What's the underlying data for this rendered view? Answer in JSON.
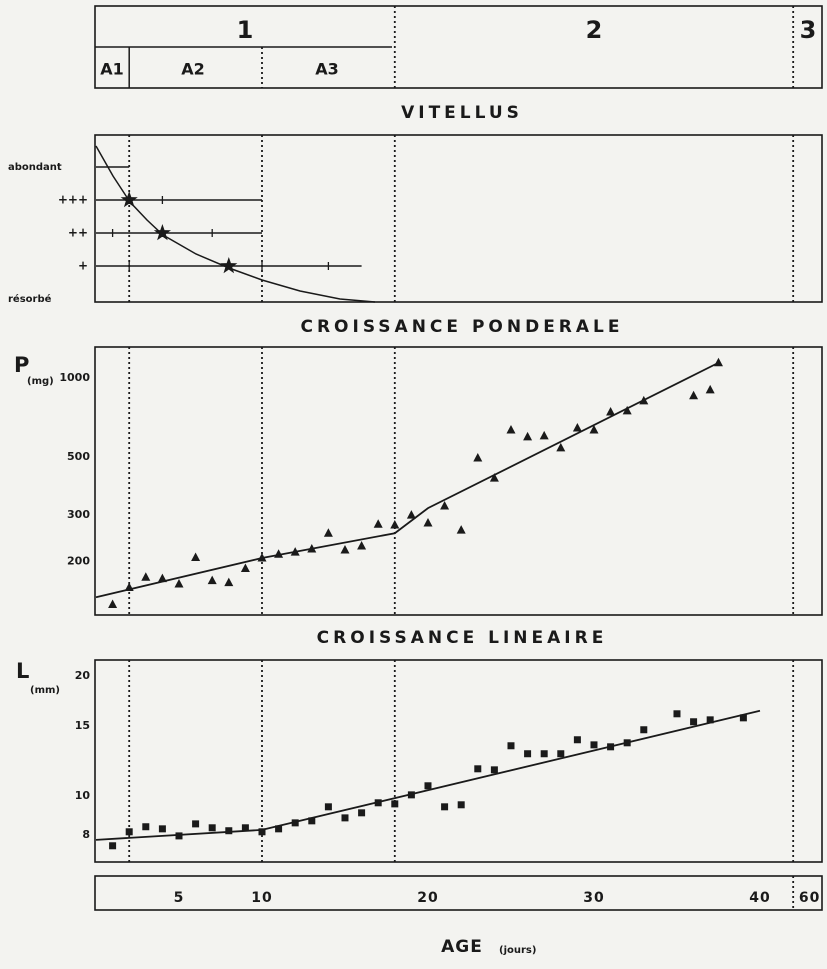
{
  "phases": {
    "labels": [
      "1",
      "2",
      "3"
    ],
    "subphases": [
      "A1",
      "A2",
      "A3"
    ]
  },
  "boundaries": [
    2,
    10,
    18,
    42
  ],
  "vitellus": {
    "title": "VITELLUS",
    "levels": [
      "abondant",
      "+++",
      "++",
      "+",
      "résorbé"
    ],
    "bars": [
      {
        "level": 0,
        "from": 0,
        "to": 2,
        "ticks": []
      },
      {
        "level": 1,
        "from": 0,
        "to": 10,
        "ticks": [
          2,
          4
        ]
      },
      {
        "level": 2,
        "from": 0,
        "to": 10,
        "ticks": [
          1,
          4,
          7
        ]
      },
      {
        "level": 3,
        "from": 0,
        "to": 16,
        "ticks": [
          2,
          10,
          14
        ]
      }
    ],
    "stars": {
      "x": [
        2,
        4,
        8
      ],
      "levels": [
        1,
        2,
        3
      ]
    }
  },
  "chart_data": [
    {
      "type": "scatter",
      "title": "CROISSANCE PONDERALE",
      "y_label": "P",
      "y_label_unit": "(mg)",
      "ylog": true,
      "ylim": [
        125,
        1310
      ],
      "yticks": [
        200,
        300,
        500,
        1000
      ],
      "xlim": [
        0,
        43.7
      ],
      "series": [
        {
          "marker": "triangle",
          "color": "#1a1a1a",
          "x": [
            1,
            2,
            3,
            4,
            5,
            6,
            7,
            8,
            9,
            10,
            11,
            12,
            13,
            14,
            15,
            16,
            17,
            18,
            19,
            20,
            21,
            22,
            23,
            24,
            25,
            26,
            27,
            28,
            29,
            30,
            31,
            32,
            33,
            36,
            37,
            37.5
          ],
          "values": [
            137,
            159,
            174,
            172,
            164,
            207,
            169,
            166,
            188,
            206,
            213,
            217,
            223,
            256,
            221,
            229,
            277,
            275,
            300,
            280,
            325,
            263,
            495,
            415,
            633,
            596,
            601,
            541,
            644,
            633,
            741,
            748,
            817,
            854,
            900,
            1141
          ]
        },
        {
          "marker": "line",
          "color": "#1a1a1a",
          "x": [
            0,
            10,
            18,
            20,
            37.5
          ],
          "values": [
            146,
            206,
            256,
            319,
            1141
          ]
        }
      ]
    },
    {
      "type": "scatter",
      "title": "CROISSANCE LINEAIRE",
      "y_label": "L",
      "y_label_unit": "(mm)",
      "ylog": true,
      "ylim": [
        6.85,
        21.9
      ],
      "yticks": [
        8,
        10,
        15,
        20
      ],
      "xlim": [
        0,
        43.7
      ],
      "series": [
        {
          "marker": "square",
          "color": "#1a1a1a",
          "x": [
            1,
            2,
            3,
            4,
            5,
            6,
            7,
            8,
            9,
            10,
            11,
            12,
            13,
            14,
            15,
            16,
            17,
            18,
            19,
            20,
            21,
            22,
            23,
            24,
            25,
            26,
            27,
            28,
            29,
            30,
            31,
            32,
            33,
            35,
            36,
            37,
            39
          ],
          "values": [
            7.52,
            8.15,
            8.39,
            8.29,
            7.96,
            8.53,
            8.34,
            8.2,
            8.34,
            8.15,
            8.29,
            8.58,
            8.68,
            9.41,
            8.83,
            9.09,
            9.63,
            9.57,
            10.08,
            10.62,
            9.41,
            9.52,
            11.71,
            11.64,
            13.37,
            12.77,
            12.77,
            12.77,
            13.84,
            13.44,
            13.29,
            13.6,
            14.66,
            16.07,
            15.35,
            15.52,
            15.7
          ]
        },
        {
          "marker": "line",
          "color": "#1a1a1a",
          "x": [
            0,
            10,
            40
          ],
          "values": [
            7.78,
            8.24,
            16.35
          ]
        }
      ]
    }
  ],
  "age_axis": {
    "x_label": "AGE",
    "x_label_unit": "(jours)",
    "xticks": [
      5,
      10,
      20,
      30,
      40
    ],
    "xticks_after_break": [
      60
    ]
  }
}
